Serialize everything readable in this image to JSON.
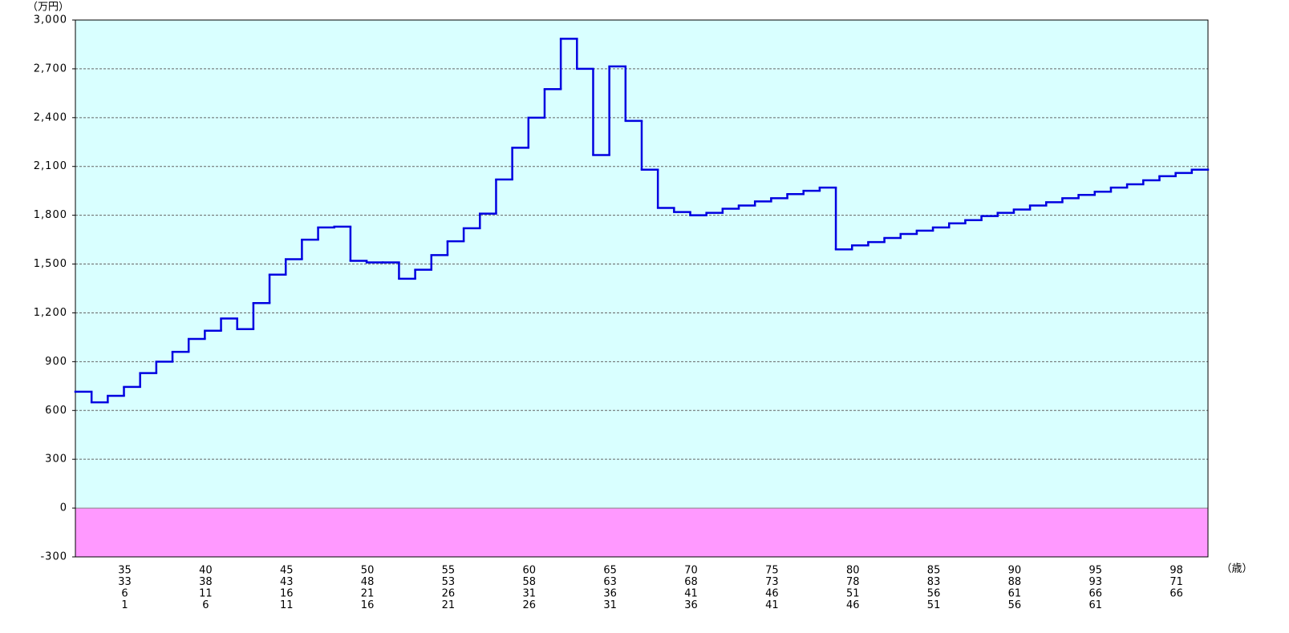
{
  "chart_data": {
    "type": "step",
    "y_unit_label": "（万円）",
    "x_unit_label": "（歳）",
    "ylim": [
      -300,
      3000
    ],
    "yticks": [
      -300,
      0,
      300,
      600,
      900,
      {
        "value": 1200,
        "label": "1,200"
      },
      {
        "value": 1500,
        "label": "1,500"
      },
      {
        "value": 1800,
        "label": "1,800"
      },
      {
        "value": 2100,
        "label": "2,100"
      },
      {
        "value": 2400,
        "label": "2,400"
      },
      {
        "value": 2700,
        "label": "2,700"
      },
      {
        "value": 3000,
        "label": "3,000"
      }
    ],
    "grid": true,
    "positive_background": "#d9ffff",
    "negative_background": "#ff99ff",
    "color": "#0000e0",
    "categories": [
      null,
      null,
      null,
      [
        "35",
        "33",
        "6",
        "1"
      ],
      null,
      null,
      null,
      null,
      [
        "40",
        "38",
        "11",
        "6"
      ],
      null,
      null,
      null,
      null,
      [
        "45",
        "43",
        "16",
        "11"
      ],
      null,
      null,
      null,
      null,
      [
        "50",
        "48",
        "21",
        "16"
      ],
      null,
      null,
      null,
      null,
      [
        "55",
        "53",
        "26",
        "21"
      ],
      null,
      null,
      null,
      null,
      [
        "60",
        "58",
        "31",
        "26"
      ],
      null,
      null,
      null,
      null,
      [
        "65",
        "63",
        "36",
        "31"
      ],
      null,
      null,
      null,
      null,
      [
        "70",
        "68",
        "41",
        "36"
      ],
      null,
      null,
      null,
      null,
      [
        "75",
        "73",
        "46",
        "41"
      ],
      null,
      null,
      null,
      null,
      [
        "80",
        "78",
        "51",
        "46"
      ],
      null,
      null,
      null,
      null,
      [
        "85",
        "83",
        "56",
        "51"
      ],
      null,
      null,
      null,
      null,
      [
        "90",
        "88",
        "61",
        "56"
      ],
      null,
      null,
      null,
      null,
      [
        "95",
        "93",
        "66",
        "61"
      ],
      null,
      null,
      null,
      null,
      [
        "98",
        "71",
        "66"
      ],
      null
    ],
    "values": [
      715,
      650,
      690,
      745,
      830,
      900,
      960,
      1040,
      1090,
      1165,
      1100,
      1260,
      1435,
      1530,
      1650,
      1725,
      1730,
      1520,
      1510,
      1510,
      1410,
      1465,
      1555,
      1640,
      1720,
      1810,
      2020,
      2215,
      2400,
      2575,
      2885,
      2700,
      2170,
      2715,
      2380,
      2080,
      1845,
      1820,
      1800,
      1815,
      1840,
      1860,
      1885,
      1905,
      1930,
      1950,
      1970,
      1590,
      1615,
      1635,
      1660,
      1685,
      1705,
      1725,
      1750,
      1770,
      1795,
      1815,
      1835,
      1860,
      1880,
      1905,
      1925,
      1945,
      1970,
      1990,
      2015,
      2040,
      2060,
      2080
    ]
  }
}
